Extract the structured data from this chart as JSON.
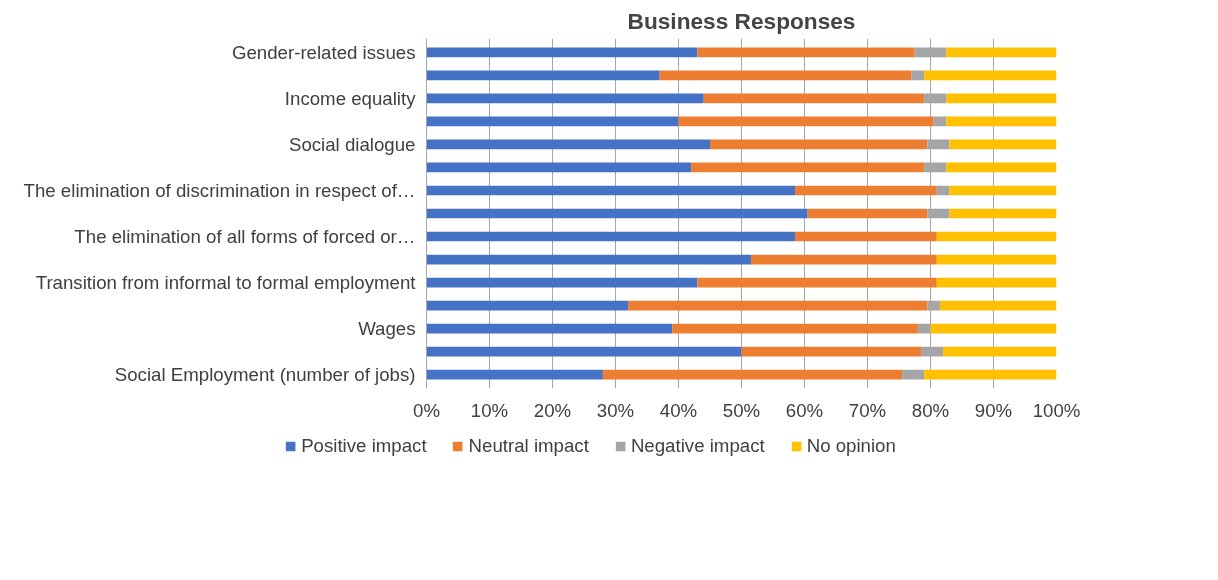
{
  "chart_data": {
    "type": "bar",
    "orientation": "horizontal",
    "stacked": true,
    "title": "Business Responses",
    "categories": [
      "Gender-related issues",
      null,
      "Income equality",
      null,
      "Social dialogue",
      null,
      "The elimination of discrimination in respect of…",
      null,
      "The elimination of all forms of forced or…",
      null,
      "Transition from informal to formal employment",
      null,
      "Wages",
      null,
      "Social Employment (number of jobs)"
    ],
    "series": [
      {
        "name": "Positive impact",
        "color": "#4472c4",
        "values": [
          43,
          37,
          44,
          40,
          45,
          42,
          58.5,
          60.5,
          58.5,
          51.5,
          43,
          32,
          39,
          50,
          28
        ]
      },
      {
        "name": "Neutral impact",
        "color": "#ed7d31",
        "values": [
          34.5,
          40,
          35,
          40.5,
          34.5,
          37,
          22.5,
          19,
          22.5,
          29.5,
          38,
          47.5,
          39,
          28.5,
          47.5
        ]
      },
      {
        "name": "Negative impact",
        "color": "#a5a5a5",
        "values": [
          5,
          2,
          3.5,
          2,
          3.5,
          3.5,
          2,
          3.5,
          0,
          0,
          0,
          2,
          2,
          3.5,
          3.5
        ]
      },
      {
        "name": "No opinion",
        "color": "#ffc000",
        "values": [
          17.5,
          21,
          17.5,
          17.5,
          17,
          17.5,
          17,
          17,
          19,
          19,
          19,
          18.5,
          20,
          18,
          21
        ]
      }
    ],
    "xlim": [
      0,
      100
    ],
    "xticks": [
      {
        "value": 0,
        "label": "0%"
      },
      {
        "value": 10,
        "label": "10%"
      },
      {
        "value": 20,
        "label": "20%"
      },
      {
        "value": 30,
        "label": "30%"
      },
      {
        "value": 40,
        "label": "40%"
      },
      {
        "value": 50,
        "label": "50%"
      },
      {
        "value": 60,
        "label": "60%"
      },
      {
        "value": 70,
        "label": "70%"
      },
      {
        "value": 80,
        "label": "80%"
      },
      {
        "value": 90,
        "label": "90%"
      },
      {
        "value": 100,
        "label": "100%"
      }
    ],
    "grid": "x",
    "legend": "bottom"
  }
}
